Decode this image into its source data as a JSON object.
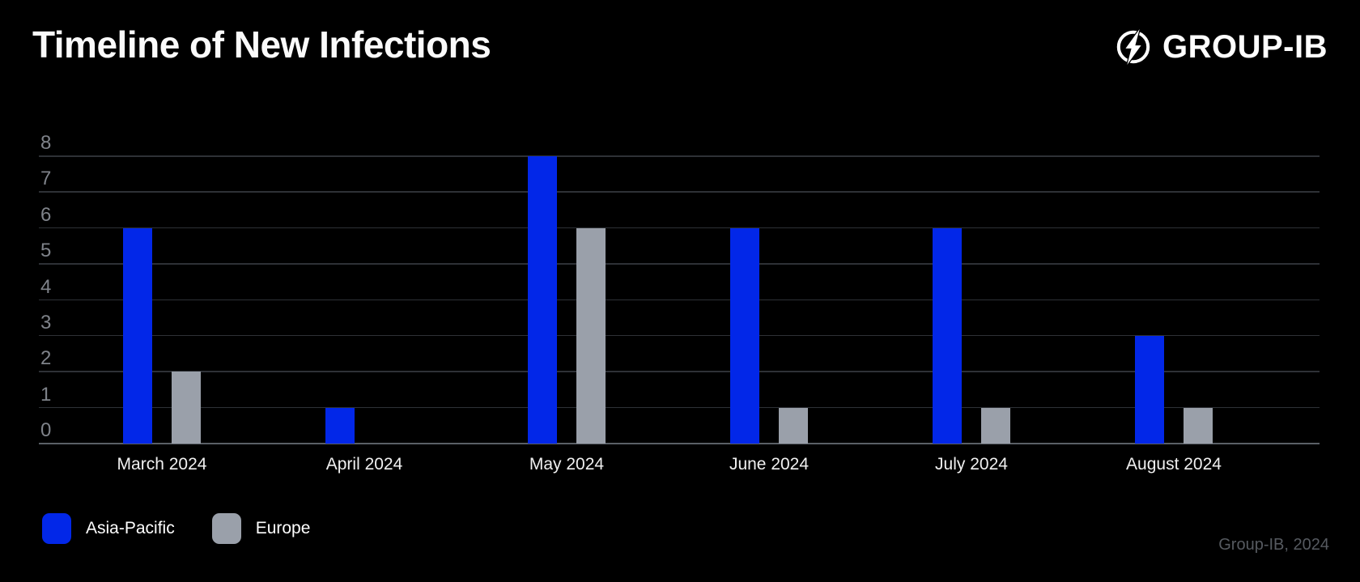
{
  "title": "Timeline of New Infections",
  "logo": {
    "text": "GROUP-IB",
    "icon": "group-ib-ring-bolt-icon"
  },
  "attribution": "Group-IB, 2024",
  "colors": {
    "background": "#000000",
    "asia_pacific": "#0227e8",
    "europe": "#9aa0aa",
    "gridline": "#2e3136",
    "axis_line": "#5a5f66",
    "y_tick_label": "#7f838a",
    "x_tick_label": "#f0f0f0",
    "attribution_text": "#565a60"
  },
  "legend": [
    {
      "label": "Asia-Pacific",
      "color": "#0227e8"
    },
    {
      "label": "Europe",
      "color": "#9aa0aa"
    }
  ],
  "chart_data": {
    "type": "bar",
    "categories": [
      "March 2024",
      "April 2024",
      "May 2024",
      "June 2024",
      "July 2024",
      "August 2024"
    ],
    "series": [
      {
        "name": "Asia-Pacific",
        "color": "#0227e8",
        "values": [
          6,
          1,
          8,
          6,
          6,
          3
        ]
      },
      {
        "name": "Europe",
        "color": "#9aa0aa",
        "values": [
          2,
          0,
          6,
          1,
          1,
          1
        ]
      }
    ],
    "title": "Timeline of New Infections",
    "xlabel": "",
    "ylabel": "",
    "ylim": [
      0,
      8
    ],
    "yticks": [
      0,
      1,
      2,
      3,
      4,
      5,
      6,
      7,
      8
    ],
    "grid": true,
    "legend_position": "bottom-left"
  }
}
